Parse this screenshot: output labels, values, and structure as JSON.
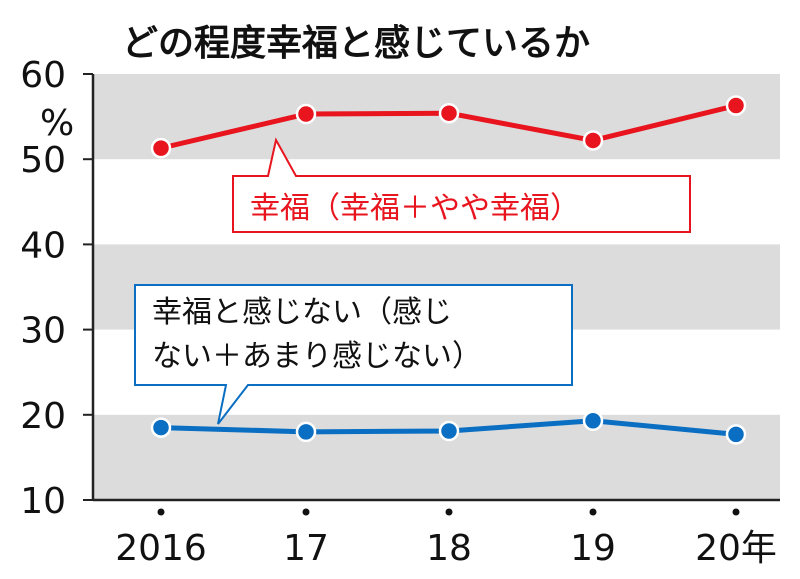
{
  "chart_data": {
    "type": "line",
    "title": "どの程度幸福と感じているか",
    "ylabel": "%",
    "ylim": [
      10,
      60
    ],
    "yticks": [
      "60",
      "50",
      "40",
      "30",
      "20",
      "10"
    ],
    "categories": [
      "2016",
      "17",
      "18",
      "19",
      "20年"
    ],
    "grid": "alternating-bands",
    "series": [
      {
        "name": "幸福（幸福＋やや幸福）",
        "color": "#e8141e",
        "values": [
          51.3,
          55.3,
          55.4,
          52.2,
          56.3
        ]
      },
      {
        "name_lines": [
          "幸福と感じない（感じ",
          "ない＋あまり感じない）"
        ],
        "color": "#0a6fc2",
        "values": [
          18.5,
          18.0,
          18.1,
          19.3,
          17.7
        ]
      }
    ]
  }
}
